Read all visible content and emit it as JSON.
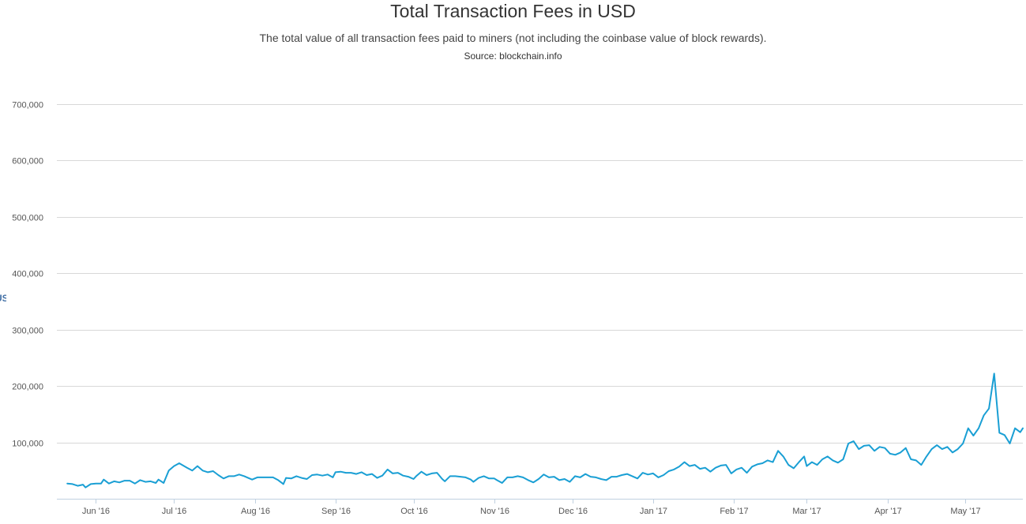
{
  "chart_data": {
    "type": "line",
    "title": "Total Transaction Fees in USD",
    "subtitle": "The total value of all transaction fees paid to miners (not including the coinbase value of block rewards).",
    "source": "Source: blockchain.info",
    "ylabel": "USD",
    "xlabel": "",
    "ylim": [
      0,
      700000
    ],
    "xlim": [
      "2016-05-17",
      "2017-05-23"
    ],
    "grid": true,
    "legend": "none",
    "line_color": "#1a9fd4",
    "y_ticks": [
      {
        "value": 100000,
        "label": "100,000"
      },
      {
        "value": 200000,
        "label": "200,000"
      },
      {
        "value": 300000,
        "label": "300,000"
      },
      {
        "value": 400000,
        "label": "400,000"
      },
      {
        "value": 500000,
        "label": "500,000"
      },
      {
        "value": 600000,
        "label": "600,000"
      },
      {
        "value": 700000,
        "label": "700,000"
      }
    ],
    "x_ticks": [
      {
        "date": "2016-06-01",
        "label": "Jun '16"
      },
      {
        "date": "2016-07-01",
        "label": "Jul '16"
      },
      {
        "date": "2016-08-01",
        "label": "Aug '16"
      },
      {
        "date": "2016-09-01",
        "label": "Sep '16"
      },
      {
        "date": "2016-10-01",
        "label": "Oct '16"
      },
      {
        "date": "2016-11-01",
        "label": "Nov '16"
      },
      {
        "date": "2016-12-01",
        "label": "Dec '16"
      },
      {
        "date": "2017-01-01",
        "label": "Jan '17"
      },
      {
        "date": "2017-02-01",
        "label": "Feb '17"
      },
      {
        "date": "2017-03-01",
        "label": "Mar '17"
      },
      {
        "date": "2017-04-01",
        "label": "Apr '17"
      },
      {
        "date": "2017-05-01",
        "label": "May '17"
      }
    ],
    "series": [
      {
        "points": [
          [
            "2016-05-21",
            27000
          ],
          [
            "2016-05-23",
            26000
          ],
          [
            "2016-05-25",
            23000
          ],
          [
            "2016-05-27",
            25000
          ],
          [
            "2016-05-28",
            20000
          ],
          [
            "2016-05-30",
            26000
          ],
          [
            "2016-06-01",
            27000
          ],
          [
            "2016-06-03",
            27000
          ],
          [
            "2016-06-04",
            34000
          ],
          [
            "2016-06-06",
            27000
          ],
          [
            "2016-06-08",
            31000
          ],
          [
            "2016-06-10",
            29000
          ],
          [
            "2016-06-12",
            32000
          ],
          [
            "2016-06-14",
            32000
          ],
          [
            "2016-06-16",
            27000
          ],
          [
            "2016-06-18",
            33000
          ],
          [
            "2016-06-20",
            30000
          ],
          [
            "2016-06-22",
            31000
          ],
          [
            "2016-06-24",
            28000
          ],
          [
            "2016-06-25",
            34000
          ],
          [
            "2016-06-27",
            28000
          ],
          [
            "2016-06-29",
            50000
          ],
          [
            "2016-07-01",
            58000
          ],
          [
            "2016-07-03",
            63000
          ],
          [
            "2016-07-06",
            55000
          ],
          [
            "2016-07-08",
            50000
          ],
          [
            "2016-07-10",
            58000
          ],
          [
            "2016-07-12",
            50000
          ],
          [
            "2016-07-14",
            47000
          ],
          [
            "2016-07-16",
            49000
          ],
          [
            "2016-07-18",
            42000
          ],
          [
            "2016-07-20",
            36000
          ],
          [
            "2016-07-22",
            40000
          ],
          [
            "2016-07-24",
            40000
          ],
          [
            "2016-07-26",
            43000
          ],
          [
            "2016-07-28",
            40000
          ],
          [
            "2016-07-30",
            36000
          ],
          [
            "2016-07-31",
            34000
          ],
          [
            "2016-08-02",
            38000
          ],
          [
            "2016-08-04",
            38000
          ],
          [
            "2016-08-06",
            38000
          ],
          [
            "2016-08-08",
            38000
          ],
          [
            "2016-08-10",
            33000
          ],
          [
            "2016-08-12",
            26000
          ],
          [
            "2016-08-13",
            37000
          ],
          [
            "2016-08-15",
            36000
          ],
          [
            "2016-08-17",
            40000
          ],
          [
            "2016-08-19",
            37000
          ],
          [
            "2016-08-21",
            35000
          ],
          [
            "2016-08-23",
            42000
          ],
          [
            "2016-08-25",
            43000
          ],
          [
            "2016-08-27",
            41000
          ],
          [
            "2016-08-29",
            43000
          ],
          [
            "2016-08-31",
            38000
          ],
          [
            "2016-09-01",
            47000
          ],
          [
            "2016-09-03",
            48000
          ],
          [
            "2016-09-05",
            46000
          ],
          [
            "2016-09-07",
            46000
          ],
          [
            "2016-09-09",
            44000
          ],
          [
            "2016-09-11",
            47000
          ],
          [
            "2016-09-13",
            42000
          ],
          [
            "2016-09-15",
            44000
          ],
          [
            "2016-09-17",
            37000
          ],
          [
            "2016-09-19",
            41000
          ],
          [
            "2016-09-21",
            52000
          ],
          [
            "2016-09-23",
            45000
          ],
          [
            "2016-09-25",
            46000
          ],
          [
            "2016-09-27",
            41000
          ],
          [
            "2016-09-29",
            39000
          ],
          [
            "2016-10-01",
            35000
          ],
          [
            "2016-10-02",
            40000
          ],
          [
            "2016-10-04",
            48000
          ],
          [
            "2016-10-06",
            42000
          ],
          [
            "2016-10-08",
            45000
          ],
          [
            "2016-10-10",
            46000
          ],
          [
            "2016-10-12",
            35000
          ],
          [
            "2016-10-13",
            31000
          ],
          [
            "2016-10-15",
            40000
          ],
          [
            "2016-10-17",
            40000
          ],
          [
            "2016-10-19",
            39000
          ],
          [
            "2016-10-21",
            38000
          ],
          [
            "2016-10-23",
            34000
          ],
          [
            "2016-10-24",
            30000
          ],
          [
            "2016-10-26",
            37000
          ],
          [
            "2016-10-28",
            40000
          ],
          [
            "2016-10-30",
            36000
          ],
          [
            "2016-11-01",
            36000
          ],
          [
            "2016-11-02",
            33000
          ],
          [
            "2016-11-04",
            28000
          ],
          [
            "2016-11-06",
            38000
          ],
          [
            "2016-11-08",
            38000
          ],
          [
            "2016-11-10",
            40000
          ],
          [
            "2016-11-12",
            38000
          ],
          [
            "2016-11-14",
            33000
          ],
          [
            "2016-11-16",
            29000
          ],
          [
            "2016-11-18",
            35000
          ],
          [
            "2016-11-20",
            43000
          ],
          [
            "2016-11-22",
            38000
          ],
          [
            "2016-11-24",
            39000
          ],
          [
            "2016-11-26",
            33000
          ],
          [
            "2016-11-28",
            35000
          ],
          [
            "2016-11-30",
            30000
          ],
          [
            "2016-12-02",
            40000
          ],
          [
            "2016-12-04",
            38000
          ],
          [
            "2016-12-06",
            44000
          ],
          [
            "2016-12-08",
            39000
          ],
          [
            "2016-12-10",
            38000
          ],
          [
            "2016-12-12",
            35000
          ],
          [
            "2016-12-14",
            33000
          ],
          [
            "2016-12-16",
            39000
          ],
          [
            "2016-12-18",
            39000
          ],
          [
            "2016-12-20",
            42000
          ],
          [
            "2016-12-22",
            44000
          ],
          [
            "2016-12-24",
            40000
          ],
          [
            "2016-12-26",
            36000
          ],
          [
            "2016-12-28",
            46000
          ],
          [
            "2016-12-30",
            43000
          ],
          [
            "2017-01-01",
            45000
          ],
          [
            "2017-01-03",
            38000
          ],
          [
            "2017-01-05",
            42000
          ],
          [
            "2017-01-07",
            49000
          ],
          [
            "2017-01-09",
            52000
          ],
          [
            "2017-01-11",
            57000
          ],
          [
            "2017-01-13",
            65000
          ],
          [
            "2017-01-15",
            58000
          ],
          [
            "2017-01-17",
            60000
          ],
          [
            "2017-01-19",
            53000
          ],
          [
            "2017-01-21",
            55000
          ],
          [
            "2017-01-23",
            48000
          ],
          [
            "2017-01-25",
            55000
          ],
          [
            "2017-01-27",
            59000
          ],
          [
            "2017-01-29",
            60000
          ],
          [
            "2017-01-31",
            45000
          ],
          [
            "2017-02-02",
            52000
          ],
          [
            "2017-02-04",
            55000
          ],
          [
            "2017-02-06",
            46000
          ],
          [
            "2017-02-08",
            57000
          ],
          [
            "2017-02-10",
            61000
          ],
          [
            "2017-02-12",
            63000
          ],
          [
            "2017-02-14",
            68000
          ],
          [
            "2017-02-16",
            65000
          ],
          [
            "2017-02-18",
            85000
          ],
          [
            "2017-02-20",
            75000
          ],
          [
            "2017-02-22",
            60000
          ],
          [
            "2017-02-24",
            54000
          ],
          [
            "2017-02-26",
            65000
          ],
          [
            "2017-02-28",
            75000
          ],
          [
            "2017-03-01",
            58000
          ],
          [
            "2017-03-03",
            65000
          ],
          [
            "2017-03-05",
            60000
          ],
          [
            "2017-03-07",
            70000
          ],
          [
            "2017-03-09",
            75000
          ],
          [
            "2017-03-11",
            68000
          ],
          [
            "2017-03-13",
            64000
          ],
          [
            "2017-03-15",
            70000
          ],
          [
            "2017-03-17",
            98000
          ],
          [
            "2017-03-19",
            102000
          ],
          [
            "2017-03-21",
            88000
          ],
          [
            "2017-03-23",
            94000
          ],
          [
            "2017-03-25",
            95000
          ],
          [
            "2017-03-27",
            85000
          ],
          [
            "2017-03-29",
            92000
          ],
          [
            "2017-03-31",
            90000
          ],
          [
            "2017-04-02",
            80000
          ],
          [
            "2017-04-04",
            78000
          ],
          [
            "2017-04-06",
            82000
          ],
          [
            "2017-04-08",
            90000
          ],
          [
            "2017-04-10",
            70000
          ],
          [
            "2017-04-12",
            68000
          ],
          [
            "2017-04-14",
            60000
          ],
          [
            "2017-04-16",
            75000
          ],
          [
            "2017-04-18",
            88000
          ],
          [
            "2017-04-20",
            95000
          ],
          [
            "2017-04-22",
            88000
          ],
          [
            "2017-04-24",
            92000
          ],
          [
            "2017-04-26",
            82000
          ],
          [
            "2017-04-28",
            88000
          ],
          [
            "2017-04-30",
            98000
          ],
          [
            "2017-05-02",
            125000
          ],
          [
            "2017-05-04",
            112000
          ],
          [
            "2017-05-06",
            125000
          ],
          [
            "2017-05-08",
            148000
          ],
          [
            "2017-05-10",
            160000
          ],
          [
            "2017-05-12",
            222000
          ],
          [
            "2017-05-14",
            117000
          ],
          [
            "2017-05-16",
            113000
          ],
          [
            "2017-05-18",
            98000
          ],
          [
            "2017-05-20",
            125000
          ],
          [
            "2017-05-22",
            118000
          ],
          [
            "2017-05-23",
            125000
          ]
        ]
      }
    ]
  }
}
